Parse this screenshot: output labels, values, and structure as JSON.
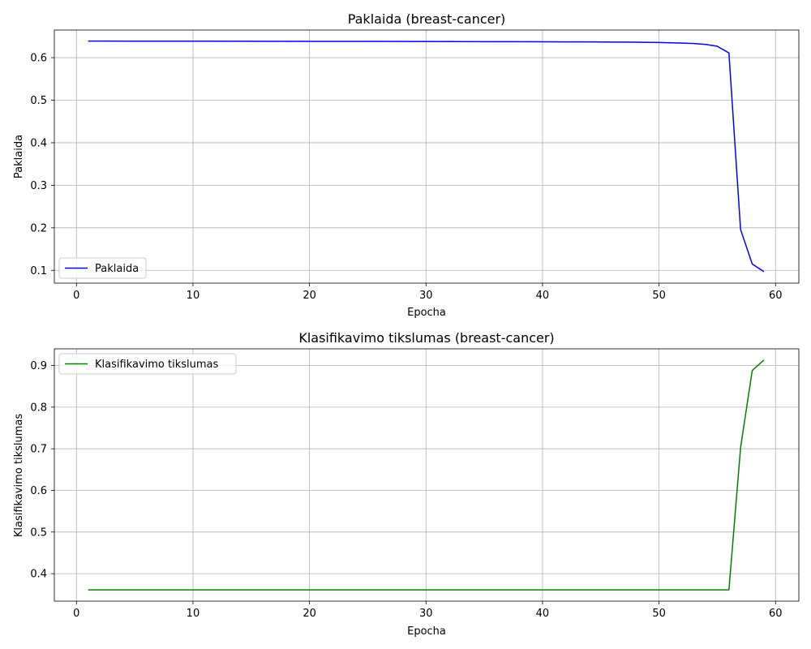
{
  "chart_data": [
    {
      "type": "line",
      "title": "Paklaida (breast-cancer)",
      "xlabel": "Epocha",
      "ylabel": "Paklaida",
      "xlim": [
        -1.9,
        62.0
      ],
      "ylim": [
        0.07,
        0.665
      ],
      "xticks": [
        0,
        10,
        20,
        30,
        40,
        50,
        60
      ],
      "xtick_labels": [
        "0",
        "10",
        "20",
        "30",
        "40",
        "50",
        "60"
      ],
      "yticks": [
        0.1,
        0.2,
        0.3,
        0.4,
        0.5,
        0.6
      ],
      "ytick_labels": [
        "0.1",
        "0.2",
        "0.3",
        "0.4",
        "0.5",
        "0.6"
      ],
      "grid": true,
      "legend_position": "lower-left",
      "series": [
        {
          "name": "Paklaida",
          "color": "#0000ff",
          "x": [
            1,
            5,
            10,
            15,
            20,
            25,
            30,
            35,
            40,
            42,
            44,
            46,
            48,
            50,
            51,
            52,
            53,
            54,
            55,
            56,
            57,
            58,
            59
          ],
          "y": [
            0.639,
            0.6389,
            0.6388,
            0.6386,
            0.6384,
            0.6382,
            0.638,
            0.6377,
            0.6374,
            0.6372,
            0.637,
            0.6367,
            0.6363,
            0.6356,
            0.635,
            0.6342,
            0.6332,
            0.6312,
            0.6268,
            0.611,
            0.196,
            0.115,
            0.097
          ]
        }
      ]
    },
    {
      "type": "line",
      "title": "Klasifikavimo tikslumas (breast-cancer)",
      "xlabel": "Epocha",
      "ylabel": "Klasifikavimo tikslumas",
      "xlim": [
        -1.9,
        62.0
      ],
      "ylim": [
        0.334,
        0.94
      ],
      "xticks": [
        0,
        10,
        20,
        30,
        40,
        50,
        60
      ],
      "xtick_labels": [
        "0",
        "10",
        "20",
        "30",
        "40",
        "50",
        "60"
      ],
      "yticks": [
        0.4,
        0.5,
        0.6,
        0.7,
        0.8,
        0.9
      ],
      "ytick_labels": [
        "0.4",
        "0.5",
        "0.6",
        "0.7",
        "0.8",
        "0.9"
      ],
      "grid": true,
      "legend_position": "upper-left",
      "series": [
        {
          "name": "Klasifikavimo tikslumas",
          "color": "#008000",
          "x": [
            1,
            10,
            20,
            30,
            40,
            50,
            55,
            56,
            57,
            58,
            59
          ],
          "y": [
            0.361,
            0.361,
            0.361,
            0.361,
            0.361,
            0.361,
            0.361,
            0.361,
            0.703,
            0.888,
            0.913
          ]
        }
      ]
    }
  ]
}
